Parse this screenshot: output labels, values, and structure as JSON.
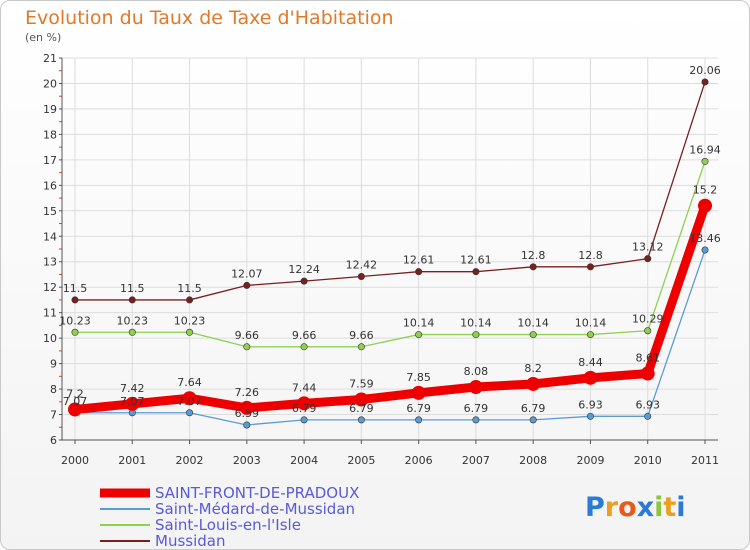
{
  "chart_data": {
    "type": "line",
    "title": "Evolution du Taux de Taxe d'Habitation",
    "subtitle": "(en %)",
    "xlabel": "",
    "ylabel": "",
    "x": [
      2000,
      2001,
      2002,
      2003,
      2004,
      2005,
      2006,
      2007,
      2008,
      2009,
      2010,
      2011
    ],
    "ylim": [
      6,
      21
    ],
    "yticks": [
      6,
      7,
      8,
      9,
      10,
      11,
      12,
      13,
      14,
      15,
      16,
      17,
      18,
      19,
      20,
      21
    ],
    "grid": true,
    "legend_position": "bottom-left",
    "series": [
      {
        "name": "Mussidan",
        "color": "#7a1f1f",
        "values": [
          11.5,
          11.5,
          11.5,
          12.07,
          12.24,
          12.42,
          12.61,
          12.61,
          12.8,
          12.8,
          13.12,
          20.06
        ],
        "labels": [
          "11.5",
          "11.5",
          "11.5",
          "12.07",
          "12.24",
          "12.42",
          "12.61",
          "12.61",
          "12.8",
          "12.8",
          "13.12",
          "20.06"
        ]
      },
      {
        "name": "Saint-Louis-en-l'Isle",
        "color": "#8fd14f",
        "values": [
          10.23,
          10.23,
          10.23,
          9.66,
          9.66,
          9.66,
          10.14,
          10.14,
          10.14,
          10.14,
          10.29,
          16.94
        ],
        "labels": [
          "10.23",
          "10.23",
          "10.23",
          "9.66",
          "9.66",
          "9.66",
          "10.14",
          "10.14",
          "10.14",
          "10.14",
          "10.29",
          "16.94"
        ]
      },
      {
        "name": "Saint-Médard-de-Mussidan",
        "color": "#5b9bd5",
        "values": [
          7.07,
          7.07,
          7.07,
          6.59,
          6.79,
          6.79,
          6.79,
          6.79,
          6.79,
          6.93,
          6.93,
          13.46
        ],
        "labels": [
          "7.07",
          "7.07",
          "7.07",
          "6.59",
          "6.79",
          "6.79",
          "6.79",
          "6.79",
          "6.79",
          "6.93",
          "6.93",
          "13.46"
        ]
      },
      {
        "name": "SAINT-FRONT-DE-PRADOUX",
        "color": "#ee0000",
        "bold": true,
        "values": [
          7.2,
          7.42,
          7.64,
          7.26,
          7.44,
          7.59,
          7.85,
          8.08,
          8.2,
          8.44,
          8.61,
          15.2
        ],
        "labels": [
          "7.2",
          "7.42",
          "7.64",
          "7.26",
          "7.44",
          "7.59",
          "7.85",
          "8.08",
          "8.2",
          "8.44",
          "8.61",
          "15.2"
        ]
      }
    ],
    "legend_order": [
      "SAINT-FRONT-DE-PRADOUX",
      "Saint-Médard-de-Mussidan",
      "Saint-Louis-en-l'Isle",
      "Mussidan"
    ]
  },
  "logo": {
    "text": "Proxiti",
    "colors": [
      "#2b7bd6",
      "#e8a020",
      "#e85a1a",
      "#2b7bd6",
      "#8cc63f",
      "#e8a020",
      "#2b7bd6"
    ]
  }
}
